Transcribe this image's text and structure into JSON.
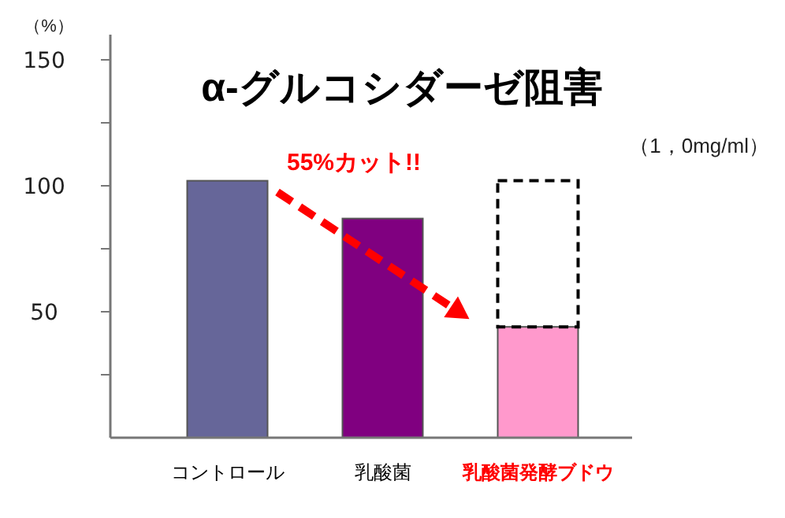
{
  "chart_data": {
    "type": "bar",
    "title": "α-グルコシダーゼ阻害",
    "ylabel": "（%）",
    "categories": [
      "コントロール",
      "乳酸菌",
      "乳酸菌発酵ブドウ"
    ],
    "stacked": true,
    "series": [
      {
        "colors": [
          "#666699",
          "#800080",
          "#ff99cc"
        ],
        "values": [
          102,
          87,
          44
        ]
      },
      {
        "color": "#000000",
        "line_style": "dashed",
        "values": [
          null,
          null,
          58
        ]
      }
    ],
    "ylim": [
      0,
      160
    ],
    "yticks": [
      {
        "value": 25,
        "label": null
      },
      50,
      {
        "value": 75,
        "label": null
      },
      100,
      {
        "value": 125,
        "label": null
      },
      150
    ],
    "annotations": [
      "55%カット!!",
      "（1，0mg/ml）"
    ],
    "grid": false
  }
}
